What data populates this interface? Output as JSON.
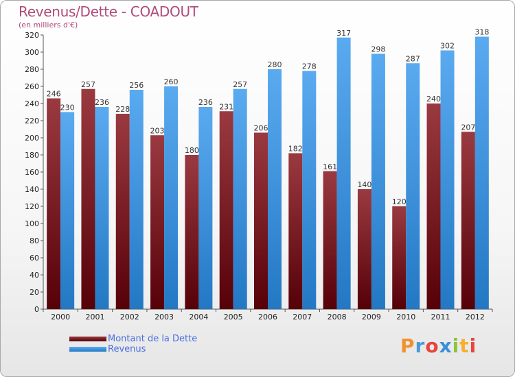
{
  "title": "Revenus/Dette - COADOUT",
  "subtitle": "(en milliers d'€)",
  "logo": {
    "letters": [
      "P",
      "r",
      "o",
      "x",
      "i",
      "t",
      "i"
    ],
    "colors": [
      "#f0922e",
      "#4a9ad8",
      "#e8453c",
      "#3a8fd8",
      "#8cc43c",
      "#f4b02e",
      "#e8453c"
    ]
  },
  "chart_data": {
    "type": "bar",
    "title": "Revenus/Dette - COADOUT",
    "ylabel": "(en milliers d'€)",
    "categories": [
      "2000",
      "2001",
      "2002",
      "2003",
      "2004",
      "2005",
      "2006",
      "2007",
      "2008",
      "2009",
      "2010",
      "2011",
      "2012"
    ],
    "series": [
      {
        "name": "Montant de la Dette",
        "color": "#7a1a1f",
        "values": [
          246,
          257,
          228,
          203,
          180,
          231,
          206,
          182,
          161,
          140,
          120,
          240,
          207
        ]
      },
      {
        "name": "Revenus",
        "color": "#3d9be6",
        "values": [
          230,
          236,
          256,
          260,
          236,
          257,
          280,
          278,
          317,
          298,
          287,
          302,
          318
        ]
      }
    ],
    "ylim": [
      0,
      320
    ],
    "yticks": [
      0,
      20,
      40,
      60,
      80,
      100,
      120,
      140,
      160,
      180,
      200,
      220,
      240,
      260,
      280,
      300,
      320
    ],
    "grid": false,
    "legend_position": "bottom-left"
  }
}
